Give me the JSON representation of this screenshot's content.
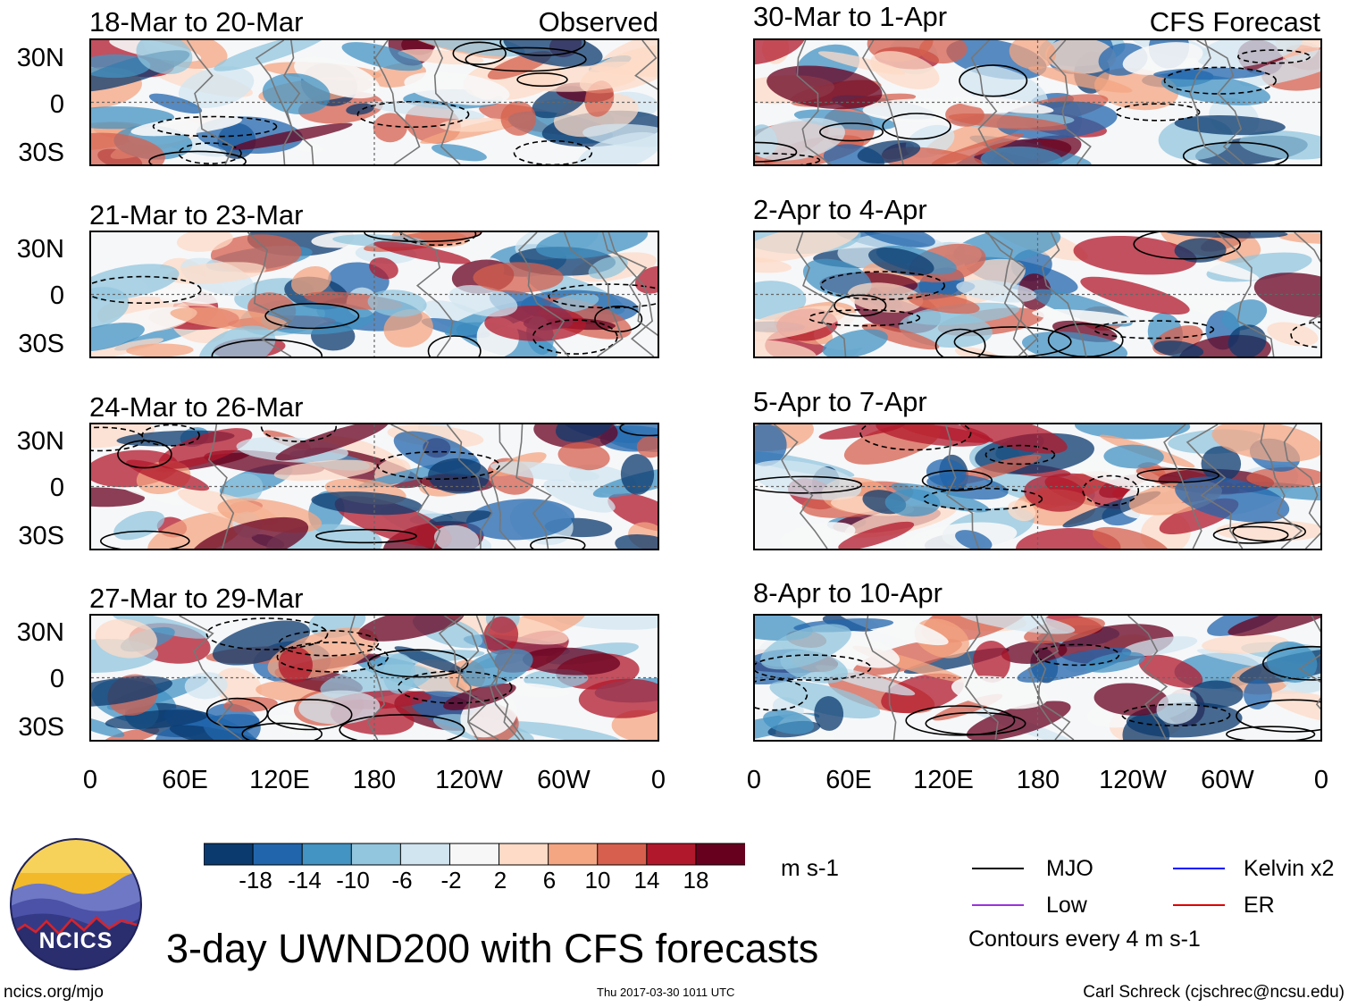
{
  "figure": {
    "title": "3-day UWND200 with CFS forecasts",
    "site": "ncics.org/mjo",
    "timestamp": "Thu 2017-03-30 1011 UTC",
    "credit": "Carl Schreck (cjschrec@ncsu.edu)",
    "logo_text": "NCICS"
  },
  "labels": {
    "observed": "Observed",
    "forecast": "CFS Forecast"
  },
  "lat_ticks": [
    "30N",
    "0",
    "30S"
  ],
  "lon_ticks": [
    "0",
    "60E",
    "120E",
    "180",
    "120W",
    "60W",
    "0"
  ],
  "panels": [
    {
      "title": "18-Mar to 20-Mar",
      "type": "Observed"
    },
    {
      "title": "21-Mar to 23-Mar",
      "type": "Observed"
    },
    {
      "title": "24-Mar to 26-Mar",
      "type": "Observed"
    },
    {
      "title": "27-Mar to 29-Mar",
      "type": "Observed"
    },
    {
      "title": "30-Mar to 1-Apr",
      "type": "CFS Forecast"
    },
    {
      "title": "2-Apr to 4-Apr",
      "type": "CFS Forecast"
    },
    {
      "title": "5-Apr to 7-Apr",
      "type": "CFS Forecast"
    },
    {
      "title": "8-Apr to 10-Apr",
      "type": "CFS Forecast"
    }
  ],
  "colorbar": {
    "units": "m s-1",
    "ticks": [
      "-18",
      "-14",
      "-10",
      "-6",
      "-2",
      "2",
      "6",
      "10",
      "14",
      "18"
    ],
    "colors": [
      "#0b3a6e",
      "#2166ac",
      "#4393c3",
      "#92c5de",
      "#d1e5f0",
      "#f7f7f7",
      "#fddbc7",
      "#f4a582",
      "#d6604d",
      "#b2182b",
      "#67001f"
    ]
  },
  "legend": {
    "items": [
      {
        "label": "MJO",
        "color": "#000000"
      },
      {
        "label": "Kelvin x2",
        "color": "#0000ff"
      },
      {
        "label": "Low",
        "color": "#9933dd"
      },
      {
        "label": "ER",
        "color": "#dd0000"
      }
    ],
    "note": "Contours every 4 m s-1"
  }
}
